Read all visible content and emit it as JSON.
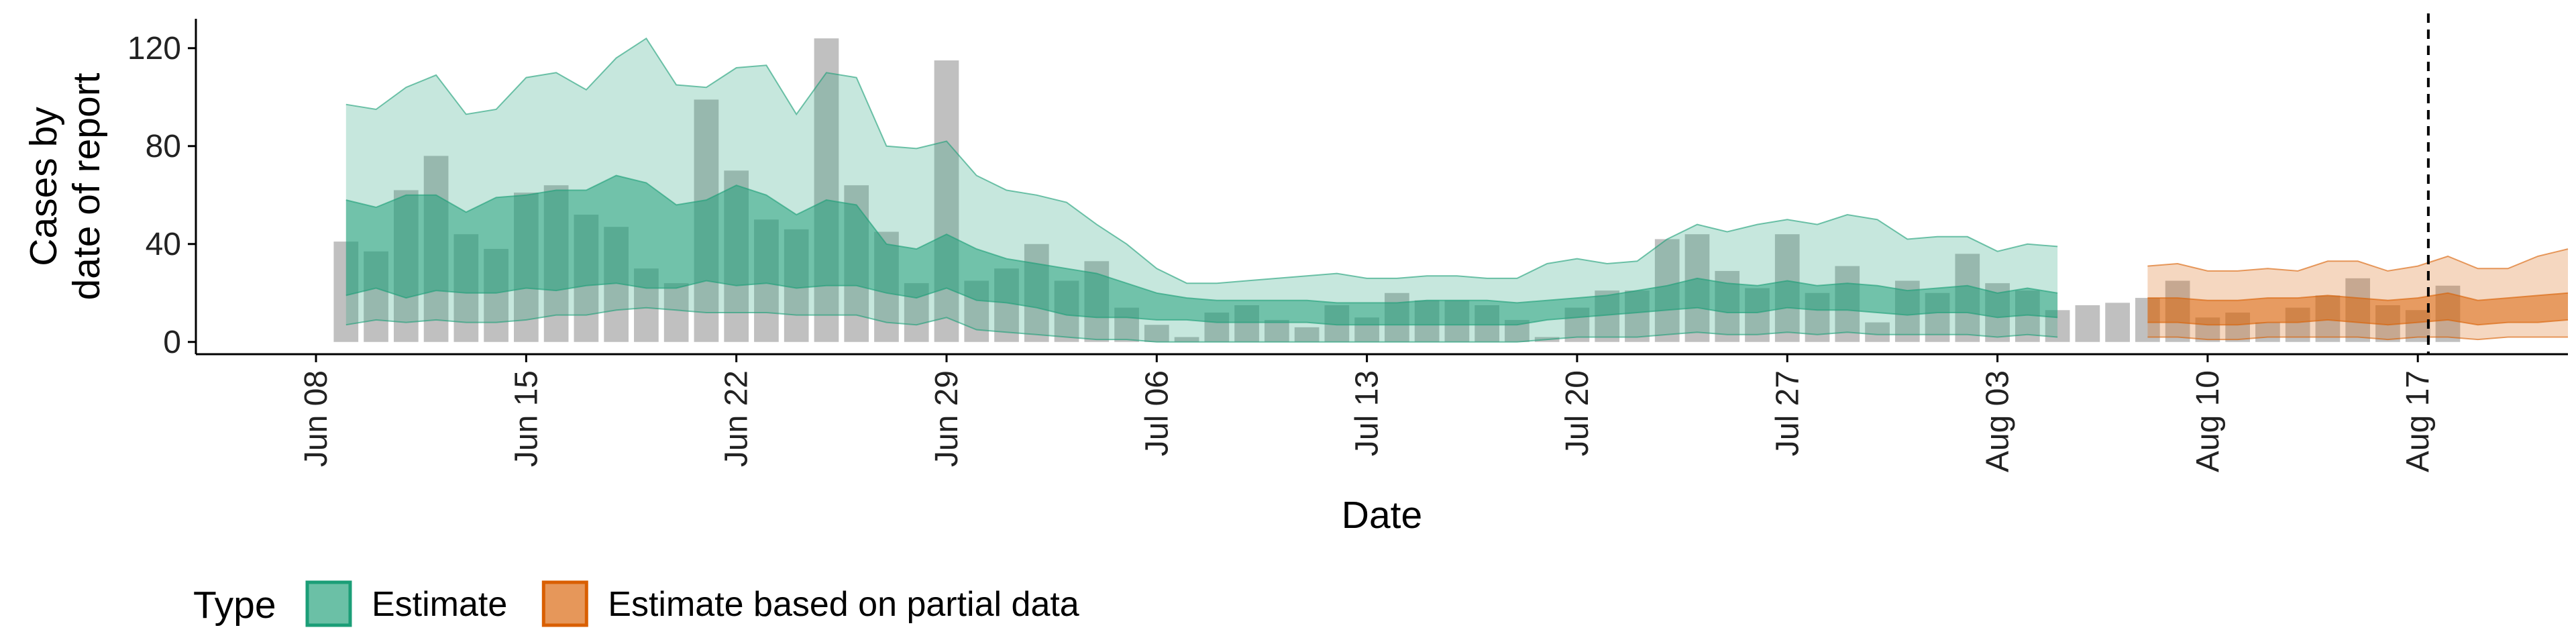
{
  "chart_data": {
    "type": "bar",
    "title": "",
    "xlabel": "Date",
    "ylabel_lines": [
      "Cases by",
      "date of report"
    ],
    "xlim": [
      "2020-06-04",
      "2020-08-22"
    ],
    "ylim": [
      -5,
      132
    ],
    "y_ticks": [
      0,
      40,
      80,
      120
    ],
    "x_ticks": [
      {
        "date": "2020-06-08",
        "label": "Jun 08"
      },
      {
        "date": "2020-06-15",
        "label": "Jun 15"
      },
      {
        "date": "2020-06-22",
        "label": "Jun 22"
      },
      {
        "date": "2020-06-29",
        "label": "Jun 29"
      },
      {
        "date": "2020-07-06",
        "label": "Jul 06"
      },
      {
        "date": "2020-07-13",
        "label": "Jul 13"
      },
      {
        "date": "2020-07-20",
        "label": "Jul 20"
      },
      {
        "date": "2020-07-27",
        "label": "Jul 27"
      },
      {
        "date": "2020-08-03",
        "label": "Aug 03"
      },
      {
        "date": "2020-08-10",
        "label": "Aug 10"
      },
      {
        "date": "2020-08-17",
        "label": "Aug 17"
      }
    ],
    "vline_date": "2020-08-17",
    "colors": {
      "estimate": "#1b9e77",
      "partial": "#d95f02",
      "bars": "#bdbdbd",
      "axis": "#000000"
    },
    "legend": {
      "title": "Type",
      "position": "bottom-left",
      "items": [
        {
          "label": "Estimate",
          "key": "estimate"
        },
        {
          "label": "Estimate based on partial data",
          "key": "partial"
        }
      ]
    },
    "reported_cases": {
      "start_date": "2020-06-09",
      "values": [
        41,
        37,
        62,
        76,
        44,
        38,
        61,
        64,
        52,
        47,
        30,
        24,
        99,
        70,
        50,
        46,
        124,
        64,
        45,
        24,
        115,
        25,
        30,
        40,
        25,
        33,
        14,
        7,
        2,
        12,
        15,
        9,
        6,
        15,
        10,
        20,
        17,
        17,
        15,
        9,
        2,
        14,
        21,
        21,
        42,
        44,
        29,
        22,
        44,
        20,
        31,
        8,
        25,
        20,
        36,
        24,
        21,
        13,
        15,
        16,
        18,
        25,
        10,
        12,
        8,
        14,
        19,
        26,
        15,
        13,
        23
      ]
    },
    "series": [
      {
        "name": "Estimate",
        "key": "estimate",
        "start_date": "2020-06-09",
        "upper_90": [
          97,
          95,
          104,
          109,
          93,
          95,
          108,
          110,
          103,
          116,
          124,
          105,
          104,
          112,
          113,
          93,
          110,
          108,
          80,
          79,
          82,
          68,
          62,
          60,
          57,
          48,
          40,
          30,
          24,
          24,
          25,
          26,
          27,
          28,
          26,
          26,
          27,
          27,
          26,
          26,
          32,
          34,
          32,
          33,
          42,
          48,
          45,
          48,
          50,
          48,
          52,
          50,
          42,
          43,
          43,
          37,
          40,
          39
        ],
        "upper_50": [
          58,
          55,
          60,
          60,
          53,
          59,
          60,
          62,
          62,
          68,
          65,
          56,
          58,
          64,
          60,
          52,
          58,
          56,
          40,
          38,
          44,
          38,
          34,
          32,
          30,
          28,
          24,
          20,
          18,
          17,
          17,
          17,
          17,
          16,
          16,
          16,
          17,
          17,
          17,
          16,
          17,
          18,
          19,
          21,
          23,
          26,
          24,
          23,
          25,
          23,
          24,
          23,
          21,
          22,
          23,
          20,
          22,
          20
        ],
        "lower_50": [
          19,
          22,
          18,
          21,
          20,
          20,
          22,
          21,
          23,
          24,
          22,
          22,
          25,
          23,
          24,
          22,
          23,
          23,
          20,
          18,
          22,
          17,
          16,
          14,
          11,
          10,
          10,
          9,
          9,
          8,
          8,
          8,
          8,
          7,
          7,
          7,
          7,
          7,
          7,
          7,
          9,
          10,
          11,
          12,
          13,
          14,
          12,
          12,
          14,
          13,
          13,
          12,
          11,
          12,
          12,
          10,
          11,
          10
        ],
        "lower_90": [
          7,
          9,
          8,
          9,
          8,
          8,
          9,
          11,
          11,
          13,
          14,
          13,
          12,
          12,
          12,
          11,
          11,
          11,
          8,
          7,
          10,
          5,
          4,
          3,
          2,
          1,
          1,
          0,
          0,
          0,
          0,
          0,
          0,
          0,
          0,
          0,
          0,
          0,
          0,
          0,
          1,
          2,
          2,
          2,
          3,
          4,
          3,
          3,
          4,
          3,
          4,
          3,
          3,
          3,
          3,
          2,
          3,
          2
        ]
      },
      {
        "name": "Estimate based on partial data",
        "key": "partial",
        "start_date": "2020-08-08",
        "upper_90": [
          31,
          32,
          29,
          29,
          30,
          29,
          33,
          33,
          29,
          31,
          35,
          30,
          30,
          35,
          38
        ],
        "upper_50": [
          18,
          18,
          17,
          17,
          18,
          18,
          19,
          18,
          17,
          18,
          20,
          17,
          18,
          19,
          20
        ],
        "lower_50": [
          8,
          8,
          7,
          7,
          8,
          8,
          9,
          8,
          7,
          8,
          9,
          7,
          8,
          8,
          9
        ],
        "lower_90": [
          2,
          2,
          1,
          1,
          2,
          2,
          2,
          2,
          1,
          2,
          2,
          1,
          2,
          2,
          2
        ]
      }
    ]
  }
}
